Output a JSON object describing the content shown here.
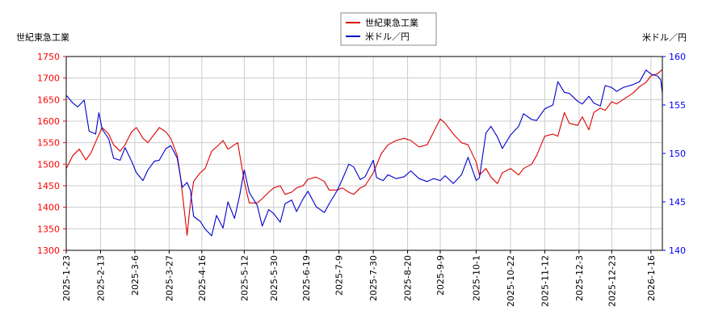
{
  "chart_data": {
    "type": "line",
    "title": "",
    "legend": {
      "placement": "top-center",
      "entries": [
        "世紀東急工業",
        "米ドル／円"
      ]
    },
    "grid": true,
    "left_axis": {
      "label": "世紀東急工業",
      "ylim": [
        1300,
        1750
      ],
      "ticks": [
        "1300",
        "1350",
        "1400",
        "1450",
        "1500",
        "1550",
        "1600",
        "1650",
        "1700",
        "1750"
      ],
      "color": "#ff0000"
    },
    "right_axis": {
      "label": "米ドル／円",
      "ylim": [
        140,
        160
      ],
      "ticks": [
        "140",
        "145",
        "150",
        "155",
        "160"
      ],
      "color": "#0000ff"
    },
    "x_range": [
      "2025-01-23",
      "2026-01-23"
    ],
    "x_ticks": [
      "2025-1-23",
      "2025-2-13",
      "2025-3-6",
      "2025-3-27",
      "2025-4-16",
      "2025-5-12",
      "2025-5-30",
      "2025-6-19",
      "2025-7-9",
      "2025-7-30",
      "2025-8-20",
      "2025-9-9",
      "2025-10-1",
      "2025-10-22",
      "2025-11-12",
      "2025-12-3",
      "2025-12-23",
      "2026-1-16"
    ],
    "series": [
      {
        "name": "世紀東急工業",
        "axis": "left",
        "color": "#dd0000",
        "points": [
          [
            "2025-01-23",
            1490
          ],
          [
            "2025-01-27",
            1520
          ],
          [
            "2025-01-31",
            1535
          ],
          [
            "2025-02-04",
            1510
          ],
          [
            "2025-02-07",
            1525
          ],
          [
            "2025-02-11",
            1560
          ],
          [
            "2025-02-14",
            1585
          ],
          [
            "2025-02-18",
            1570
          ],
          [
            "2025-02-21",
            1545
          ],
          [
            "2025-02-25",
            1530
          ],
          [
            "2025-02-28",
            1545
          ],
          [
            "2025-03-04",
            1575
          ],
          [
            "2025-03-07",
            1585
          ],
          [
            "2025-03-11",
            1560
          ],
          [
            "2025-03-14",
            1550
          ],
          [
            "2025-03-18",
            1570
          ],
          [
            "2025-03-21",
            1585
          ],
          [
            "2025-03-25",
            1575
          ],
          [
            "2025-03-28",
            1560
          ],
          [
            "2025-04-01",
            1520
          ],
          [
            "2025-04-03",
            1470
          ],
          [
            "2025-04-07",
            1335
          ],
          [
            "2025-04-09",
            1410
          ],
          [
            "2025-04-11",
            1460
          ],
          [
            "2025-04-15",
            1480
          ],
          [
            "2025-04-18",
            1490
          ],
          [
            "2025-04-22",
            1530
          ],
          [
            "2025-04-25",
            1540
          ],
          [
            "2025-04-29",
            1555
          ],
          [
            "2025-05-02",
            1535
          ],
          [
            "2025-05-08",
            1550
          ],
          [
            "2025-05-12",
            1460
          ],
          [
            "2025-05-15",
            1410
          ],
          [
            "2025-05-20",
            1410
          ],
          [
            "2025-05-23",
            1420
          ],
          [
            "2025-05-27",
            1435
          ],
          [
            "2025-05-30",
            1445
          ],
          [
            "2025-06-03",
            1450
          ],
          [
            "2025-06-06",
            1430
          ],
          [
            "2025-06-10",
            1435
          ],
          [
            "2025-06-13",
            1445
          ],
          [
            "2025-06-17",
            1450
          ],
          [
            "2025-06-20",
            1465
          ],
          [
            "2025-06-25",
            1470
          ],
          [
            "2025-06-30",
            1460
          ],
          [
            "2025-07-03",
            1440
          ],
          [
            "2025-07-08",
            1440
          ],
          [
            "2025-07-11",
            1445
          ],
          [
            "2025-07-15",
            1435
          ],
          [
            "2025-07-18",
            1430
          ],
          [
            "2025-07-22",
            1445
          ],
          [
            "2025-07-25",
            1450
          ],
          [
            "2025-07-30",
            1480
          ],
          [
            "2025-08-04",
            1525
          ],
          [
            "2025-08-08",
            1545
          ],
          [
            "2025-08-13",
            1555
          ],
          [
            "2025-08-18",
            1560
          ],
          [
            "2025-08-22",
            1555
          ],
          [
            "2025-08-27",
            1540
          ],
          [
            "2025-09-01",
            1545
          ],
          [
            "2025-09-05",
            1575
          ],
          [
            "2025-09-09",
            1605
          ],
          [
            "2025-09-12",
            1595
          ],
          [
            "2025-09-17",
            1570
          ],
          [
            "2025-09-22",
            1550
          ],
          [
            "2025-09-26",
            1545
          ],
          [
            "2025-10-01",
            1505
          ],
          [
            "2025-10-03",
            1475
          ],
          [
            "2025-10-07",
            1490
          ],
          [
            "2025-10-10",
            1470
          ],
          [
            "2025-10-14",
            1455
          ],
          [
            "2025-10-17",
            1480
          ],
          [
            "2025-10-22",
            1490
          ],
          [
            "2025-10-27",
            1475
          ],
          [
            "2025-10-30",
            1490
          ],
          [
            "2025-11-04",
            1500
          ],
          [
            "2025-11-07",
            1520
          ],
          [
            "2025-11-12",
            1565
          ],
          [
            "2025-11-17",
            1570
          ],
          [
            "2025-11-20",
            1565
          ],
          [
            "2025-11-24",
            1620
          ],
          [
            "2025-11-27",
            1595
          ],
          [
            "2025-12-02",
            1590
          ],
          [
            "2025-12-05",
            1610
          ],
          [
            "2025-12-09",
            1580
          ],
          [
            "2025-12-12",
            1620
          ],
          [
            "2025-12-16",
            1630
          ],
          [
            "2025-12-19",
            1625
          ],
          [
            "2025-12-23",
            1645
          ],
          [
            "2025-12-26",
            1640
          ],
          [
            "2025-12-30",
            1650
          ],
          [
            "2026-01-05",
            1665
          ],
          [
            "2026-01-09",
            1680
          ],
          [
            "2026-01-13",
            1690
          ],
          [
            "2026-01-16",
            1705
          ],
          [
            "2026-01-20",
            1710
          ],
          [
            "2026-01-23",
            1720
          ]
        ]
      },
      {
        "name": "米ドル／円",
        "axis": "right",
        "color": "#0000cc",
        "points": [
          [
            "2025-01-23",
            156.0
          ],
          [
            "2025-01-27",
            155.2
          ],
          [
            "2025-01-30",
            154.8
          ],
          [
            "2025-02-03",
            155.5
          ],
          [
            "2025-02-06",
            152.3
          ],
          [
            "2025-02-10",
            152.0
          ],
          [
            "2025-02-12",
            154.2
          ],
          [
            "2025-02-14",
            152.5
          ],
          [
            "2025-02-18",
            151.5
          ],
          [
            "2025-02-21",
            149.5
          ],
          [
            "2025-02-25",
            149.3
          ],
          [
            "2025-02-28",
            150.6
          ],
          [
            "2025-03-04",
            149.2
          ],
          [
            "2025-03-07",
            148.0
          ],
          [
            "2025-03-11",
            147.2
          ],
          [
            "2025-03-14",
            148.3
          ],
          [
            "2025-03-18",
            149.2
          ],
          [
            "2025-03-21",
            149.3
          ],
          [
            "2025-03-25",
            150.5
          ],
          [
            "2025-03-28",
            150.8
          ],
          [
            "2025-04-01",
            149.5
          ],
          [
            "2025-04-04",
            146.5
          ],
          [
            "2025-04-07",
            147.0
          ],
          [
            "2025-04-09",
            146.2
          ],
          [
            "2025-04-11",
            143.5
          ],
          [
            "2025-04-15",
            143.0
          ],
          [
            "2025-04-18",
            142.2
          ],
          [
            "2025-04-22",
            141.5
          ],
          [
            "2025-04-25",
            143.6
          ],
          [
            "2025-04-29",
            142.3
          ],
          [
            "2025-05-02",
            145.0
          ],
          [
            "2025-05-06",
            143.3
          ],
          [
            "2025-05-09",
            145.5
          ],
          [
            "2025-05-12",
            148.3
          ],
          [
            "2025-05-15",
            146.0
          ],
          [
            "2025-05-20",
            144.6
          ],
          [
            "2025-05-23",
            142.5
          ],
          [
            "2025-05-27",
            144.2
          ],
          [
            "2025-05-30",
            143.8
          ],
          [
            "2025-06-03",
            142.9
          ],
          [
            "2025-06-06",
            144.8
          ],
          [
            "2025-06-10",
            145.2
          ],
          [
            "2025-06-13",
            144.0
          ],
          [
            "2025-06-17",
            145.3
          ],
          [
            "2025-06-20",
            146.1
          ],
          [
            "2025-06-25",
            144.5
          ],
          [
            "2025-06-30",
            143.9
          ],
          [
            "2025-07-03",
            144.8
          ],
          [
            "2025-07-08",
            146.2
          ],
          [
            "2025-07-11",
            147.3
          ],
          [
            "2025-07-15",
            148.9
          ],
          [
            "2025-07-18",
            148.6
          ],
          [
            "2025-07-22",
            147.3
          ],
          [
            "2025-07-25",
            147.6
          ],
          [
            "2025-07-30",
            149.3
          ],
          [
            "2025-08-01",
            147.5
          ],
          [
            "2025-08-05",
            147.2
          ],
          [
            "2025-08-08",
            147.8
          ],
          [
            "2025-08-13",
            147.4
          ],
          [
            "2025-08-18",
            147.6
          ],
          [
            "2025-08-22",
            148.2
          ],
          [
            "2025-08-27",
            147.4
          ],
          [
            "2025-09-01",
            147.1
          ],
          [
            "2025-09-05",
            147.4
          ],
          [
            "2025-09-09",
            147.2
          ],
          [
            "2025-09-12",
            147.7
          ],
          [
            "2025-09-17",
            146.9
          ],
          [
            "2025-09-22",
            147.8
          ],
          [
            "2025-09-26",
            149.6
          ],
          [
            "2025-10-01",
            147.2
          ],
          [
            "2025-10-03",
            147.5
          ],
          [
            "2025-10-07",
            152.1
          ],
          [
            "2025-10-10",
            152.8
          ],
          [
            "2025-10-14",
            151.7
          ],
          [
            "2025-10-17",
            150.5
          ],
          [
            "2025-10-22",
            151.9
          ],
          [
            "2025-10-27",
            152.8
          ],
          [
            "2025-10-30",
            154.1
          ],
          [
            "2025-11-04",
            153.5
          ],
          [
            "2025-11-07",
            153.4
          ],
          [
            "2025-11-12",
            154.6
          ],
          [
            "2025-11-17",
            155.0
          ],
          [
            "2025-11-20",
            157.4
          ],
          [
            "2025-11-24",
            156.3
          ],
          [
            "2025-11-27",
            156.2
          ],
          [
            "2025-12-02",
            155.4
          ],
          [
            "2025-12-05",
            155.1
          ],
          [
            "2025-12-09",
            155.9
          ],
          [
            "2025-12-12",
            155.2
          ],
          [
            "2025-12-16",
            154.9
          ],
          [
            "2025-12-19",
            157.0
          ],
          [
            "2025-12-23",
            156.8
          ],
          [
            "2025-12-26",
            156.4
          ],
          [
            "2025-12-30",
            156.8
          ],
          [
            "2026-01-05",
            157.1
          ],
          [
            "2026-01-09",
            157.4
          ],
          [
            "2026-01-13",
            158.6
          ],
          [
            "2026-01-16",
            158.2
          ],
          [
            "2026-01-20",
            158.0
          ],
          [
            "2026-01-22",
            157.6
          ],
          [
            "2026-01-23",
            156.2
          ]
        ]
      }
    ]
  }
}
